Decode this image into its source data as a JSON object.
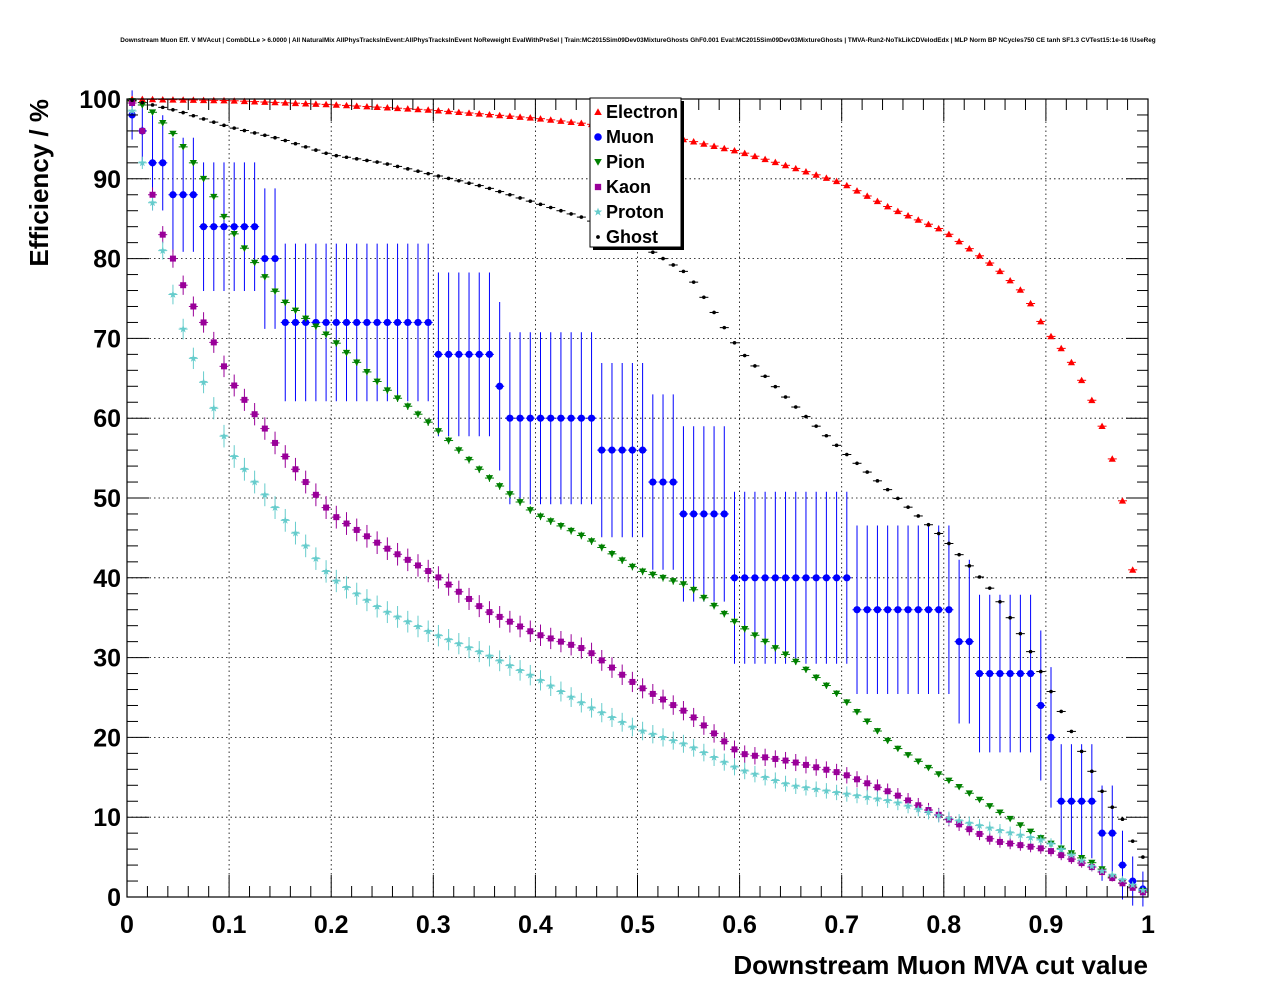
{
  "chart_data": {
    "type": "scatter",
    "title": "Downstream Muon Eff. V MVAcut | CombDLLe > 6.0000 | All NaturalMix AllPhysTracksInEvent:AllPhysTracksInEvent NoReweight EvalWithPreSel | Train:MC2015Sim09Dev03MixtureGhosts GhF0.001 Eval:MC2015Sim09Dev03MixtureGhosts | TMVA-Run2-NoTkLikCDVelodEdx | MLP Norm BP NCycles750 CE tanh SF1.3 CVTest15:1e-16 !UseReg",
    "xlabel": "Downstream Muon MVA cut value",
    "ylabel": "Efficiency / %",
    "xlim": [
      0,
      1
    ],
    "ylim": [
      0,
      100
    ],
    "xticks": [
      "0",
      "0.1",
      "0.2",
      "0.3",
      "0.4",
      "0.5",
      "0.6",
      "0.7",
      "0.8",
      "0.9",
      "1"
    ],
    "yticks": [
      "0",
      "10",
      "20",
      "30",
      "40",
      "50",
      "60",
      "70",
      "80",
      "90",
      "100"
    ],
    "grid": true,
    "legend_position": "top-center",
    "series": [
      {
        "name": "Electron",
        "color": "#ff0000",
        "marker": "triangle-up",
        "points": [
          [
            0,
            100
          ],
          [
            0.1,
            99.8
          ],
          [
            0.2,
            99.3
          ],
          [
            0.3,
            98.6
          ],
          [
            0.4,
            97.6
          ],
          [
            0.5,
            96.2
          ],
          [
            0.6,
            93.4
          ],
          [
            0.65,
            91.5
          ],
          [
            0.7,
            89.5
          ],
          [
            0.75,
            86.2
          ],
          [
            0.8,
            83.5
          ],
          [
            0.85,
            79
          ],
          [
            0.88,
            75.5
          ],
          [
            0.9,
            71
          ],
          [
            0.92,
            68
          ],
          [
            0.93,
            66
          ],
          [
            0.95,
            61
          ],
          [
            0.96,
            57
          ],
          [
            0.97,
            52.8
          ],
          [
            0.98,
            46.5
          ],
          [
            0.99,
            35.5
          ]
        ]
      },
      {
        "name": "Muon",
        "color": "#0000ff",
        "marker": "circle",
        "points": [
          [
            0.005,
            98
          ],
          [
            0.015,
            96
          ],
          [
            0.025,
            92
          ],
          [
            0.035,
            92
          ],
          [
            0.045,
            88
          ],
          [
            0.055,
            88
          ],
          [
            0.065,
            88
          ],
          [
            0.075,
            84
          ],
          [
            0.085,
            84
          ],
          [
            0.095,
            84
          ],
          [
            0.105,
            84
          ],
          [
            0.115,
            84
          ],
          [
            0.125,
            84
          ],
          [
            0.135,
            80
          ],
          [
            0.145,
            80
          ],
          [
            0.155,
            72
          ],
          [
            0.165,
            72
          ],
          [
            0.175,
            72
          ],
          [
            0.185,
            72
          ],
          [
            0.195,
            72
          ],
          [
            0.205,
            72
          ],
          [
            0.215,
            72
          ],
          [
            0.225,
            72
          ],
          [
            0.235,
            72
          ],
          [
            0.245,
            72
          ],
          [
            0.255,
            72
          ],
          [
            0.265,
            72
          ],
          [
            0.275,
            72
          ],
          [
            0.285,
            72
          ],
          [
            0.295,
            72
          ],
          [
            0.305,
            68
          ],
          [
            0.315,
            68
          ],
          [
            0.325,
            68
          ],
          [
            0.335,
            68
          ],
          [
            0.345,
            68
          ],
          [
            0.355,
            68
          ],
          [
            0.365,
            64
          ],
          [
            0.375,
            60
          ],
          [
            0.385,
            60
          ],
          [
            0.395,
            60
          ],
          [
            0.405,
            60
          ],
          [
            0.415,
            60
          ],
          [
            0.425,
            60
          ],
          [
            0.435,
            60
          ],
          [
            0.445,
            60
          ],
          [
            0.455,
            60
          ],
          [
            0.465,
            56
          ],
          [
            0.475,
            56
          ],
          [
            0.485,
            56
          ],
          [
            0.495,
            56
          ],
          [
            0.505,
            56
          ],
          [
            0.515,
            52
          ],
          [
            0.525,
            52
          ],
          [
            0.535,
            52
          ],
          [
            0.545,
            48
          ],
          [
            0.555,
            48
          ],
          [
            0.565,
            48
          ],
          [
            0.575,
            48
          ],
          [
            0.585,
            48
          ],
          [
            0.595,
            40
          ],
          [
            0.605,
            40
          ],
          [
            0.615,
            40
          ],
          [
            0.625,
            40
          ],
          [
            0.635,
            40
          ],
          [
            0.645,
            40
          ],
          [
            0.655,
            40
          ],
          [
            0.665,
            40
          ],
          [
            0.675,
            40
          ],
          [
            0.685,
            40
          ],
          [
            0.695,
            40
          ],
          [
            0.705,
            40
          ],
          [
            0.715,
            36
          ],
          [
            0.725,
            36
          ],
          [
            0.735,
            36
          ],
          [
            0.745,
            36
          ],
          [
            0.755,
            36
          ],
          [
            0.765,
            36
          ],
          [
            0.775,
            36
          ],
          [
            0.785,
            36
          ],
          [
            0.795,
            36
          ],
          [
            0.805,
            36
          ],
          [
            0.815,
            32
          ],
          [
            0.825,
            32
          ],
          [
            0.835,
            28
          ],
          [
            0.845,
            28
          ],
          [
            0.855,
            28
          ],
          [
            0.865,
            28
          ],
          [
            0.875,
            28
          ],
          [
            0.885,
            28
          ],
          [
            0.895,
            24
          ],
          [
            0.905,
            20
          ],
          [
            0.915,
            12
          ],
          [
            0.925,
            12
          ],
          [
            0.935,
            12
          ],
          [
            0.945,
            12
          ],
          [
            0.955,
            8
          ],
          [
            0.965,
            8
          ],
          [
            0.975,
            4
          ],
          [
            0.985,
            2
          ],
          [
            0.995,
            1
          ]
        ]
      },
      {
        "name": "Pion",
        "color": "#008000",
        "marker": "triangle-down",
        "points": [
          [
            0,
            100
          ],
          [
            0.02,
            99
          ],
          [
            0.05,
            95
          ],
          [
            0.08,
            89
          ],
          [
            0.1,
            84
          ],
          [
            0.15,
            75
          ],
          [
            0.2,
            70
          ],
          [
            0.25,
            64
          ],
          [
            0.3,
            59
          ],
          [
            0.35,
            53
          ],
          [
            0.4,
            48
          ],
          [
            0.45,
            45
          ],
          [
            0.5,
            41
          ],
          [
            0.55,
            39
          ],
          [
            0.6,
            34
          ],
          [
            0.65,
            30
          ],
          [
            0.7,
            25
          ],
          [
            0.75,
            19
          ],
          [
            0.8,
            15
          ],
          [
            0.85,
            11
          ],
          [
            0.9,
            7
          ],
          [
            0.95,
            4
          ],
          [
            0.97,
            2
          ],
          [
            1,
            0.5
          ]
        ]
      },
      {
        "name": "Kaon",
        "color": "#990099",
        "marker": "square",
        "points": [
          [
            0.005,
            99.5
          ],
          [
            0.015,
            96
          ],
          [
            0.025,
            88
          ],
          [
            0.035,
            83
          ],
          [
            0.045,
            80
          ],
          [
            0.06,
            75
          ],
          [
            0.08,
            71
          ],
          [
            0.1,
            65
          ],
          [
            0.15,
            56
          ],
          [
            0.2,
            48
          ],
          [
            0.25,
            44
          ],
          [
            0.3,
            40.5
          ],
          [
            0.35,
            36
          ],
          [
            0.4,
            33
          ],
          [
            0.45,
            31
          ],
          [
            0.5,
            26.5
          ],
          [
            0.55,
            23
          ],
          [
            0.6,
            18
          ],
          [
            0.65,
            17
          ],
          [
            0.7,
            15.5
          ],
          [
            0.75,
            13
          ],
          [
            0.8,
            10
          ],
          [
            0.85,
            7
          ],
          [
            0.9,
            6
          ],
          [
            0.95,
            3.5
          ],
          [
            0.97,
            2
          ],
          [
            1,
            0.3
          ]
        ]
      },
      {
        "name": "Proton",
        "color": "#66cccc",
        "marker": "star",
        "points": [
          [
            0.005,
            98.5
          ],
          [
            0.015,
            92
          ],
          [
            0.025,
            87
          ],
          [
            0.035,
            81
          ],
          [
            0.045,
            75.5
          ],
          [
            0.06,
            69
          ],
          [
            0.08,
            63
          ],
          [
            0.1,
            56
          ],
          [
            0.15,
            48
          ],
          [
            0.2,
            40
          ],
          [
            0.25,
            36
          ],
          [
            0.3,
            33
          ],
          [
            0.35,
            30.5
          ],
          [
            0.4,
            27.5
          ],
          [
            0.45,
            24
          ],
          [
            0.5,
            21
          ],
          [
            0.55,
            19
          ],
          [
            0.6,
            16
          ],
          [
            0.65,
            14
          ],
          [
            0.7,
            13
          ],
          [
            0.75,
            12
          ],
          [
            0.8,
            10
          ],
          [
            0.85,
            8.5
          ],
          [
            0.9,
            7
          ],
          [
            0.95,
            3.5
          ],
          [
            0.97,
            2.5
          ],
          [
            1,
            0.5
          ]
        ]
      },
      {
        "name": "Ghost",
        "color": "#000000",
        "marker": "dot",
        "points": [
          [
            0,
            100
          ],
          [
            0.05,
            98.5
          ],
          [
            0.1,
            96.5
          ],
          [
            0.15,
            95
          ],
          [
            0.2,
            93
          ],
          [
            0.25,
            92
          ],
          [
            0.3,
            90.5
          ],
          [
            0.35,
            89
          ],
          [
            0.4,
            87
          ],
          [
            0.45,
            85
          ],
          [
            0.5,
            82
          ],
          [
            0.55,
            78
          ],
          [
            0.6,
            68.5
          ],
          [
            0.65,
            62
          ],
          [
            0.7,
            56
          ],
          [
            0.75,
            50.5
          ],
          [
            0.8,
            45
          ],
          [
            0.85,
            38
          ],
          [
            0.88,
            32
          ],
          [
            0.9,
            27
          ],
          [
            0.92,
            22
          ],
          [
            0.94,
            17
          ],
          [
            0.96,
            12
          ],
          [
            0.98,
            9
          ],
          [
            0.99,
            5
          ]
        ]
      }
    ]
  }
}
